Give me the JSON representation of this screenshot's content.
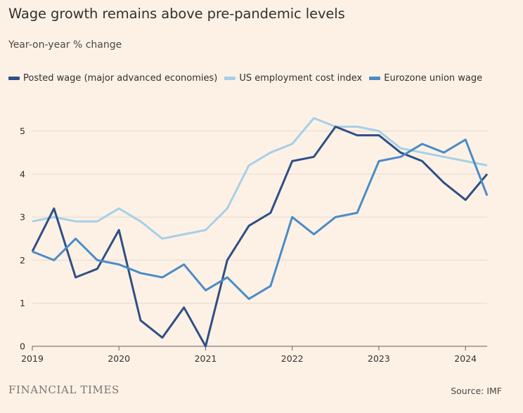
{
  "header": {
    "title": "Wage growth remains above pre-pandemic levels",
    "subtitle": "Year-on-year % change"
  },
  "footer": {
    "brand": "FINANCIAL TIMES",
    "source": "Source: IMF"
  },
  "colors": {
    "background": "#fdf1e6",
    "posted": "#2f4f85",
    "ecl": "#a6d0e6",
    "eurozone": "#4a8cc6"
  },
  "chart_data": {
    "type": "line",
    "title": "Wage growth remains above pre-pandemic levels",
    "subtitle": "Year-on-year % change",
    "xlabel": "",
    "ylabel": "",
    "xlim": [
      2019.0,
      2024.25
    ],
    "ylim": [
      0,
      5.6
    ],
    "x_ticks": [
      2019,
      2020,
      2021,
      2022,
      2023,
      2024
    ],
    "y_ticks": [
      0,
      1,
      2,
      3,
      4,
      5
    ],
    "grid": "horizontal",
    "legend": "top-left",
    "x": [
      2019.0,
      2019.25,
      2019.5,
      2019.75,
      2020.0,
      2020.25,
      2020.5,
      2020.75,
      2021.0,
      2021.25,
      2021.5,
      2021.75,
      2022.0,
      2022.25,
      2022.5,
      2022.75,
      2023.0,
      2023.25,
      2023.5,
      2023.75,
      2024.0,
      2024.25
    ],
    "series": [
      {
        "name": "Posted wage (major advanced economies)",
        "color": "#2f4f85",
        "values": [
          2.2,
          3.2,
          1.6,
          1.8,
          2.7,
          0.6,
          0.2,
          0.9,
          0.0,
          2.0,
          2.8,
          3.1,
          4.3,
          4.4,
          5.1,
          4.9,
          4.9,
          4.5,
          4.3,
          3.8,
          3.4,
          4.0
        ]
      },
      {
        "name": "US employment cost index",
        "color": "#a6d0e6",
        "values": [
          2.9,
          3.0,
          2.9,
          2.9,
          3.2,
          2.9,
          2.5,
          2.6,
          2.7,
          3.2,
          4.2,
          4.5,
          4.7,
          5.3,
          5.1,
          5.1,
          5.0,
          4.6,
          4.5,
          4.4,
          4.3,
          4.2
        ]
      },
      {
        "name": "Eurozone union wage",
        "color": "#4a8cc6",
        "values": [
          2.2,
          2.0,
          2.5,
          2.0,
          1.9,
          1.7,
          1.6,
          1.9,
          1.3,
          1.6,
          1.1,
          1.4,
          3.0,
          2.6,
          3.0,
          3.1,
          4.3,
          4.4,
          4.7,
          4.5,
          4.8,
          3.5
        ]
      }
    ]
  }
}
